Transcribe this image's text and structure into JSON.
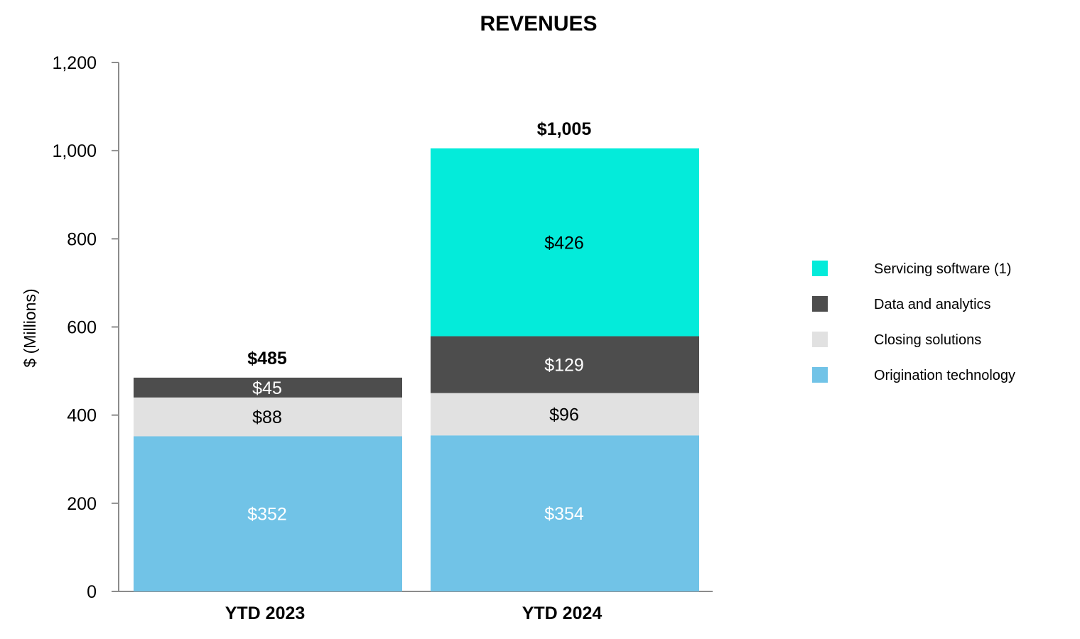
{
  "chart_data": {
    "type": "bar",
    "stacked": true,
    "title": "REVENUES",
    "xlabel": "",
    "ylabel": "$ (Millions)",
    "ylim": [
      0,
      1200
    ],
    "yticks": [
      0,
      200,
      400,
      600,
      800,
      1000,
      1200
    ],
    "ytick_labels": [
      "0",
      "200",
      "400",
      "600",
      "800",
      "1,000",
      "1,200"
    ],
    "categories": [
      "YTD 2023",
      "YTD 2024"
    ],
    "series": [
      {
        "name": "Origination technology",
        "color": "#71C3E7",
        "label_color": "#ffffff",
        "values": [
          352,
          354
        ],
        "labels": [
          "$352",
          "$354"
        ]
      },
      {
        "name": "Closing solutions",
        "color": "#E1E1E1",
        "label_color": "#000000",
        "values": [
          88,
          96
        ],
        "labels": [
          "$88",
          "$96"
        ]
      },
      {
        "name": "Data and analytics",
        "color": "#4D4D4D",
        "label_color": "#ffffff",
        "values": [
          45,
          129
        ],
        "labels": [
          "$45",
          "$129"
        ]
      },
      {
        "name": "Servicing software (1)",
        "color": "#04EBDA",
        "label_color": "#000000",
        "values": [
          0,
          426
        ],
        "labels": [
          "",
          "$426"
        ]
      }
    ],
    "totals": [
      485,
      1005
    ],
    "total_labels": [
      "$485",
      "$1,005"
    ],
    "legend_position": "right",
    "legend_order": [
      "Servicing software (1)",
      "Data and analytics",
      "Closing solutions",
      "Origination technology"
    ],
    "grid": false
  }
}
